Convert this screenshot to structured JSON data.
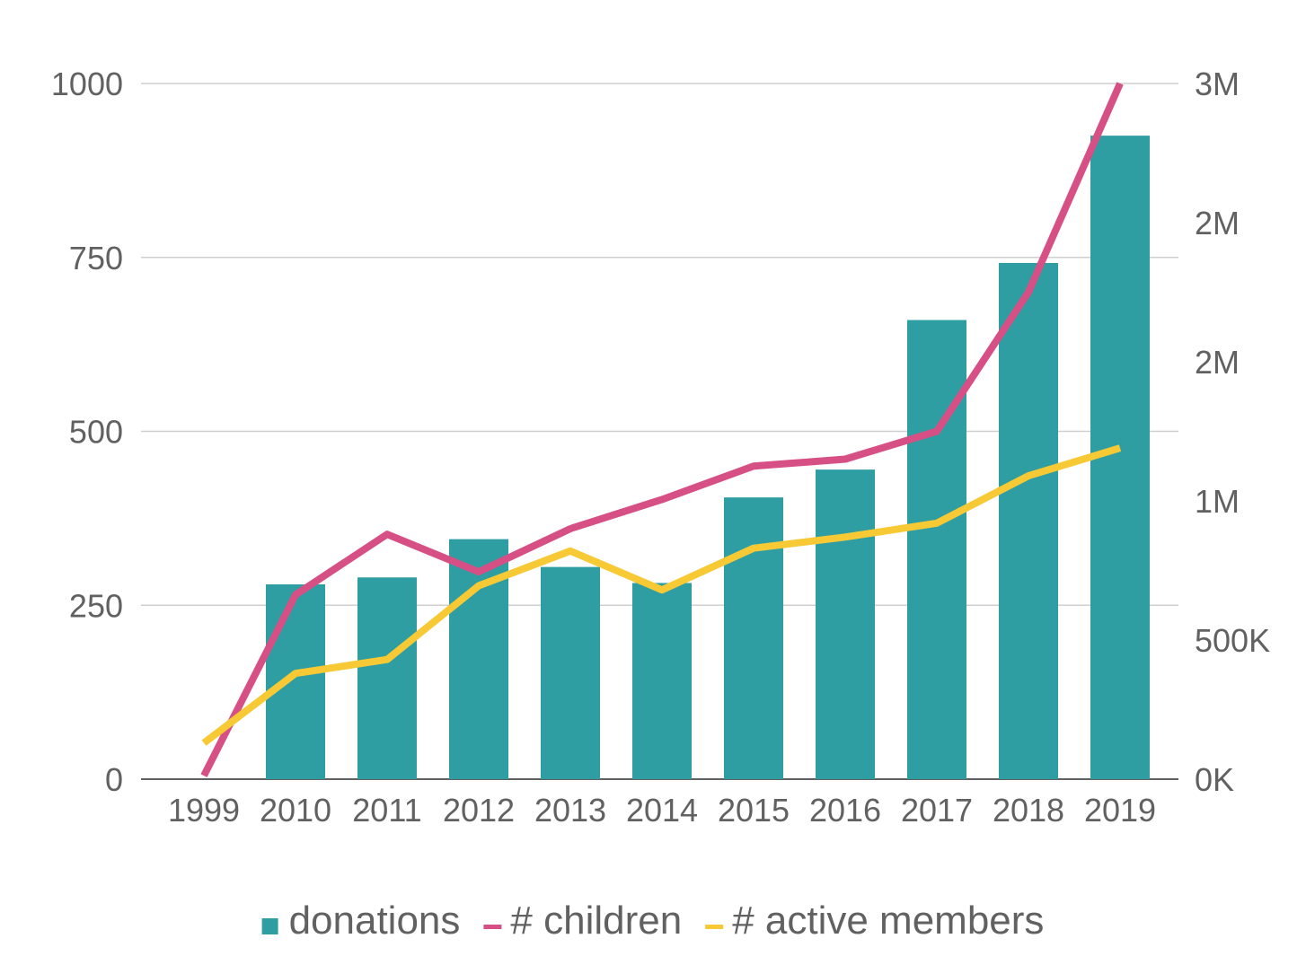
{
  "chart_data": {
    "type": "bar",
    "categories": [
      "1999",
      "2010",
      "2011",
      "2012",
      "2013",
      "2014",
      "2015",
      "2016",
      "2017",
      "2018",
      "2019"
    ],
    "series": [
      {
        "name": "donations",
        "type": "bar",
        "axis": "left",
        "values": [
          0,
          280,
          290,
          345,
          305,
          282,
          405,
          445,
          660,
          742,
          925
        ],
        "color": "#2e9ea3"
      },
      {
        "name": "# children",
        "type": "line",
        "axis": "left",
        "values": [
          5,
          265,
          352,
          298,
          360,
          402,
          450,
          460,
          500,
          700,
          1000
        ],
        "color": "#d64f85"
      },
      {
        "name": "# active members",
        "type": "line",
        "axis": "left",
        "values": [
          52,
          152,
          172,
          278,
          328,
          272,
          332,
          348,
          368,
          436,
          476
        ],
        "color": "#f6c935"
      }
    ],
    "y_left": {
      "ticks": [
        "0",
        "250",
        "500",
        "750",
        "1000"
      ],
      "ylim": [
        0,
        1000
      ]
    },
    "y_right": {
      "ticks": [
        "0K",
        "500K",
        "1M",
        "2M",
        "2M",
        "3M"
      ],
      "ylim": [
        0,
        2500000
      ]
    },
    "grid": true,
    "legend_position": "bottom",
    "title": "",
    "xlabel": "",
    "ylabel": ""
  }
}
